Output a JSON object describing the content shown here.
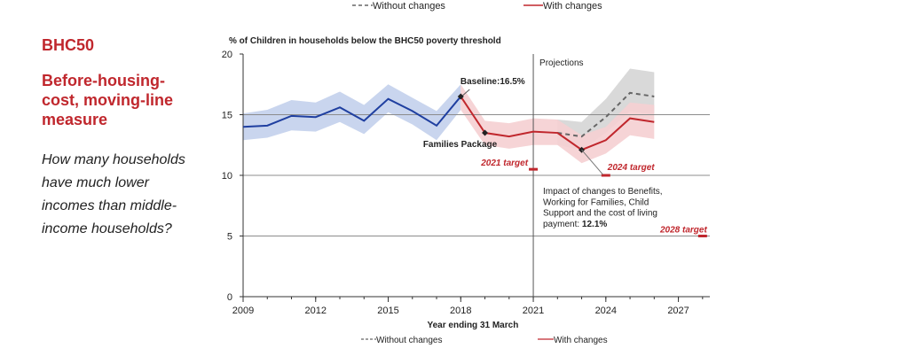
{
  "side": {
    "title": "BHC50",
    "subtitle": "Before-housing-cost, moving-line measure",
    "question": "How many households have much lower incomes than middle-income households?"
  },
  "chart_data": {
    "type": "line",
    "title": "% of Children in households below the BHC50 poverty threshold",
    "xlabel": "Year ending 31 March",
    "ylabel": "",
    "xlim": [
      2009,
      2028.3
    ],
    "ylim": [
      0,
      20
    ],
    "yticks": [
      0,
      5,
      10,
      15,
      20
    ],
    "xticks": [
      2009,
      2012,
      2015,
      2018,
      2021,
      2024,
      2027
    ],
    "horizontal_gridlines": [
      5,
      10,
      15
    ],
    "colors": {
      "historical": "#1f3fa0",
      "historical_band": "#c9d5ee",
      "with_changes": "#c0272d",
      "with_band": "#f5cfd1",
      "without_changes": "#666666",
      "without_band": "#d9d9d9",
      "projection_line": "#555555"
    },
    "series": [
      {
        "name": "",
        "x": [
          2009,
          2010,
          2011,
          2012,
          2013,
          2014,
          2015,
          2016,
          2017,
          2018
        ],
        "y": [
          14.0,
          14.1,
          14.9,
          14.8,
          15.6,
          14.5,
          16.3,
          15.3,
          14.1,
          16.5
        ],
        "lower": [
          12.9,
          13.1,
          13.7,
          13.6,
          14.4,
          13.4,
          15.2,
          14.2,
          12.9,
          15.4
        ],
        "upper": [
          15.1,
          15.4,
          16.2,
          16.0,
          16.9,
          15.8,
          17.5,
          16.4,
          15.3,
          17.5
        ]
      },
      {
        "name": "With changes",
        "x": [
          2018,
          2019,
          2020,
          2021,
          2022,
          2023,
          2024,
          2025,
          2026
        ],
        "y": [
          16.5,
          13.5,
          13.2,
          13.6,
          13.5,
          12.1,
          12.9,
          14.7,
          14.4
        ],
        "lower": [
          15.4,
          12.5,
          12.2,
          12.5,
          12.5,
          11.0,
          11.8,
          13.3,
          13.0
        ],
        "upper": [
          17.5,
          14.5,
          14.3,
          14.7,
          14.6,
          13.3,
          14.0,
          16.0,
          15.8
        ]
      },
      {
        "name": "Without changes",
        "x": [
          2022,
          2023,
          2024,
          2025,
          2026
        ],
        "y": [
          13.5,
          13.2,
          14.8,
          16.8,
          16.5
        ],
        "lower": [
          12.5,
          12.1,
          13.5,
          15.3,
          15.0
        ],
        "upper": [
          14.6,
          14.4,
          16.3,
          18.8,
          18.5
        ]
      }
    ],
    "projection_divider_x": 2021,
    "projections_label": "Projections",
    "targets": [
      {
        "label": "2021 target",
        "x": 2021,
        "y": 10.5
      },
      {
        "label": "2024 target",
        "x": 2024,
        "y": 10.0
      },
      {
        "label": "2028 target",
        "x": 2028,
        "y": 5.0
      }
    ],
    "annotations": {
      "baseline": "Baseline:16.5%",
      "families_package": "Families Package",
      "impact_lines": [
        "Impact of changes to Benefits,",
        "Working for Families, Child",
        "Support and the cost of living"
      ],
      "impact_last_prefix": "payment: ",
      "impact_value": "12.1%"
    },
    "legend": {
      "position": "top and bottom",
      "without_label": "Without changes",
      "with_label": "With changes"
    }
  }
}
